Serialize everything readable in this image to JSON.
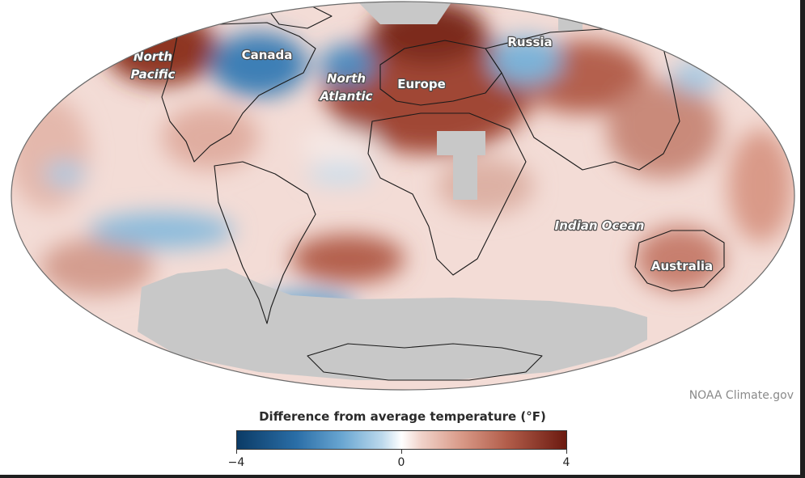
{
  "map": {
    "labels": {
      "north_pacific_line1": "North",
      "north_pacific_line2": "Pacific",
      "canada": "Canada",
      "north_atlantic_line1": "North",
      "north_atlantic_line2": "Atlantic",
      "europe": "Europe",
      "russia": "Russia",
      "indian_ocean": "Indian Ocean",
      "australia": "Australia"
    },
    "colors": {
      "ocean_base": "#f3dcd6",
      "warm_strong": "#8e3524",
      "warm_mid": "#c27a69",
      "cool_mid": "#6aa7d2",
      "cool_light": "#bcd9ec",
      "no_data": "#c8c8c8",
      "land_outline": "#1a1a1a"
    }
  },
  "credit": "NOAA Climate.gov",
  "legend": {
    "title": "Difference from average temperature (°F)",
    "min_label": "−4",
    "mid_label": "0",
    "max_label": "4",
    "min": -4,
    "max": 4,
    "colors": [
      "#0b3b66",
      "#2a6ea7",
      "#6aa7d2",
      "#bcd9ec",
      "#ffffff",
      "#f0d2c9",
      "#d99a88",
      "#b25d4a",
      "#6b1a10"
    ]
  }
}
